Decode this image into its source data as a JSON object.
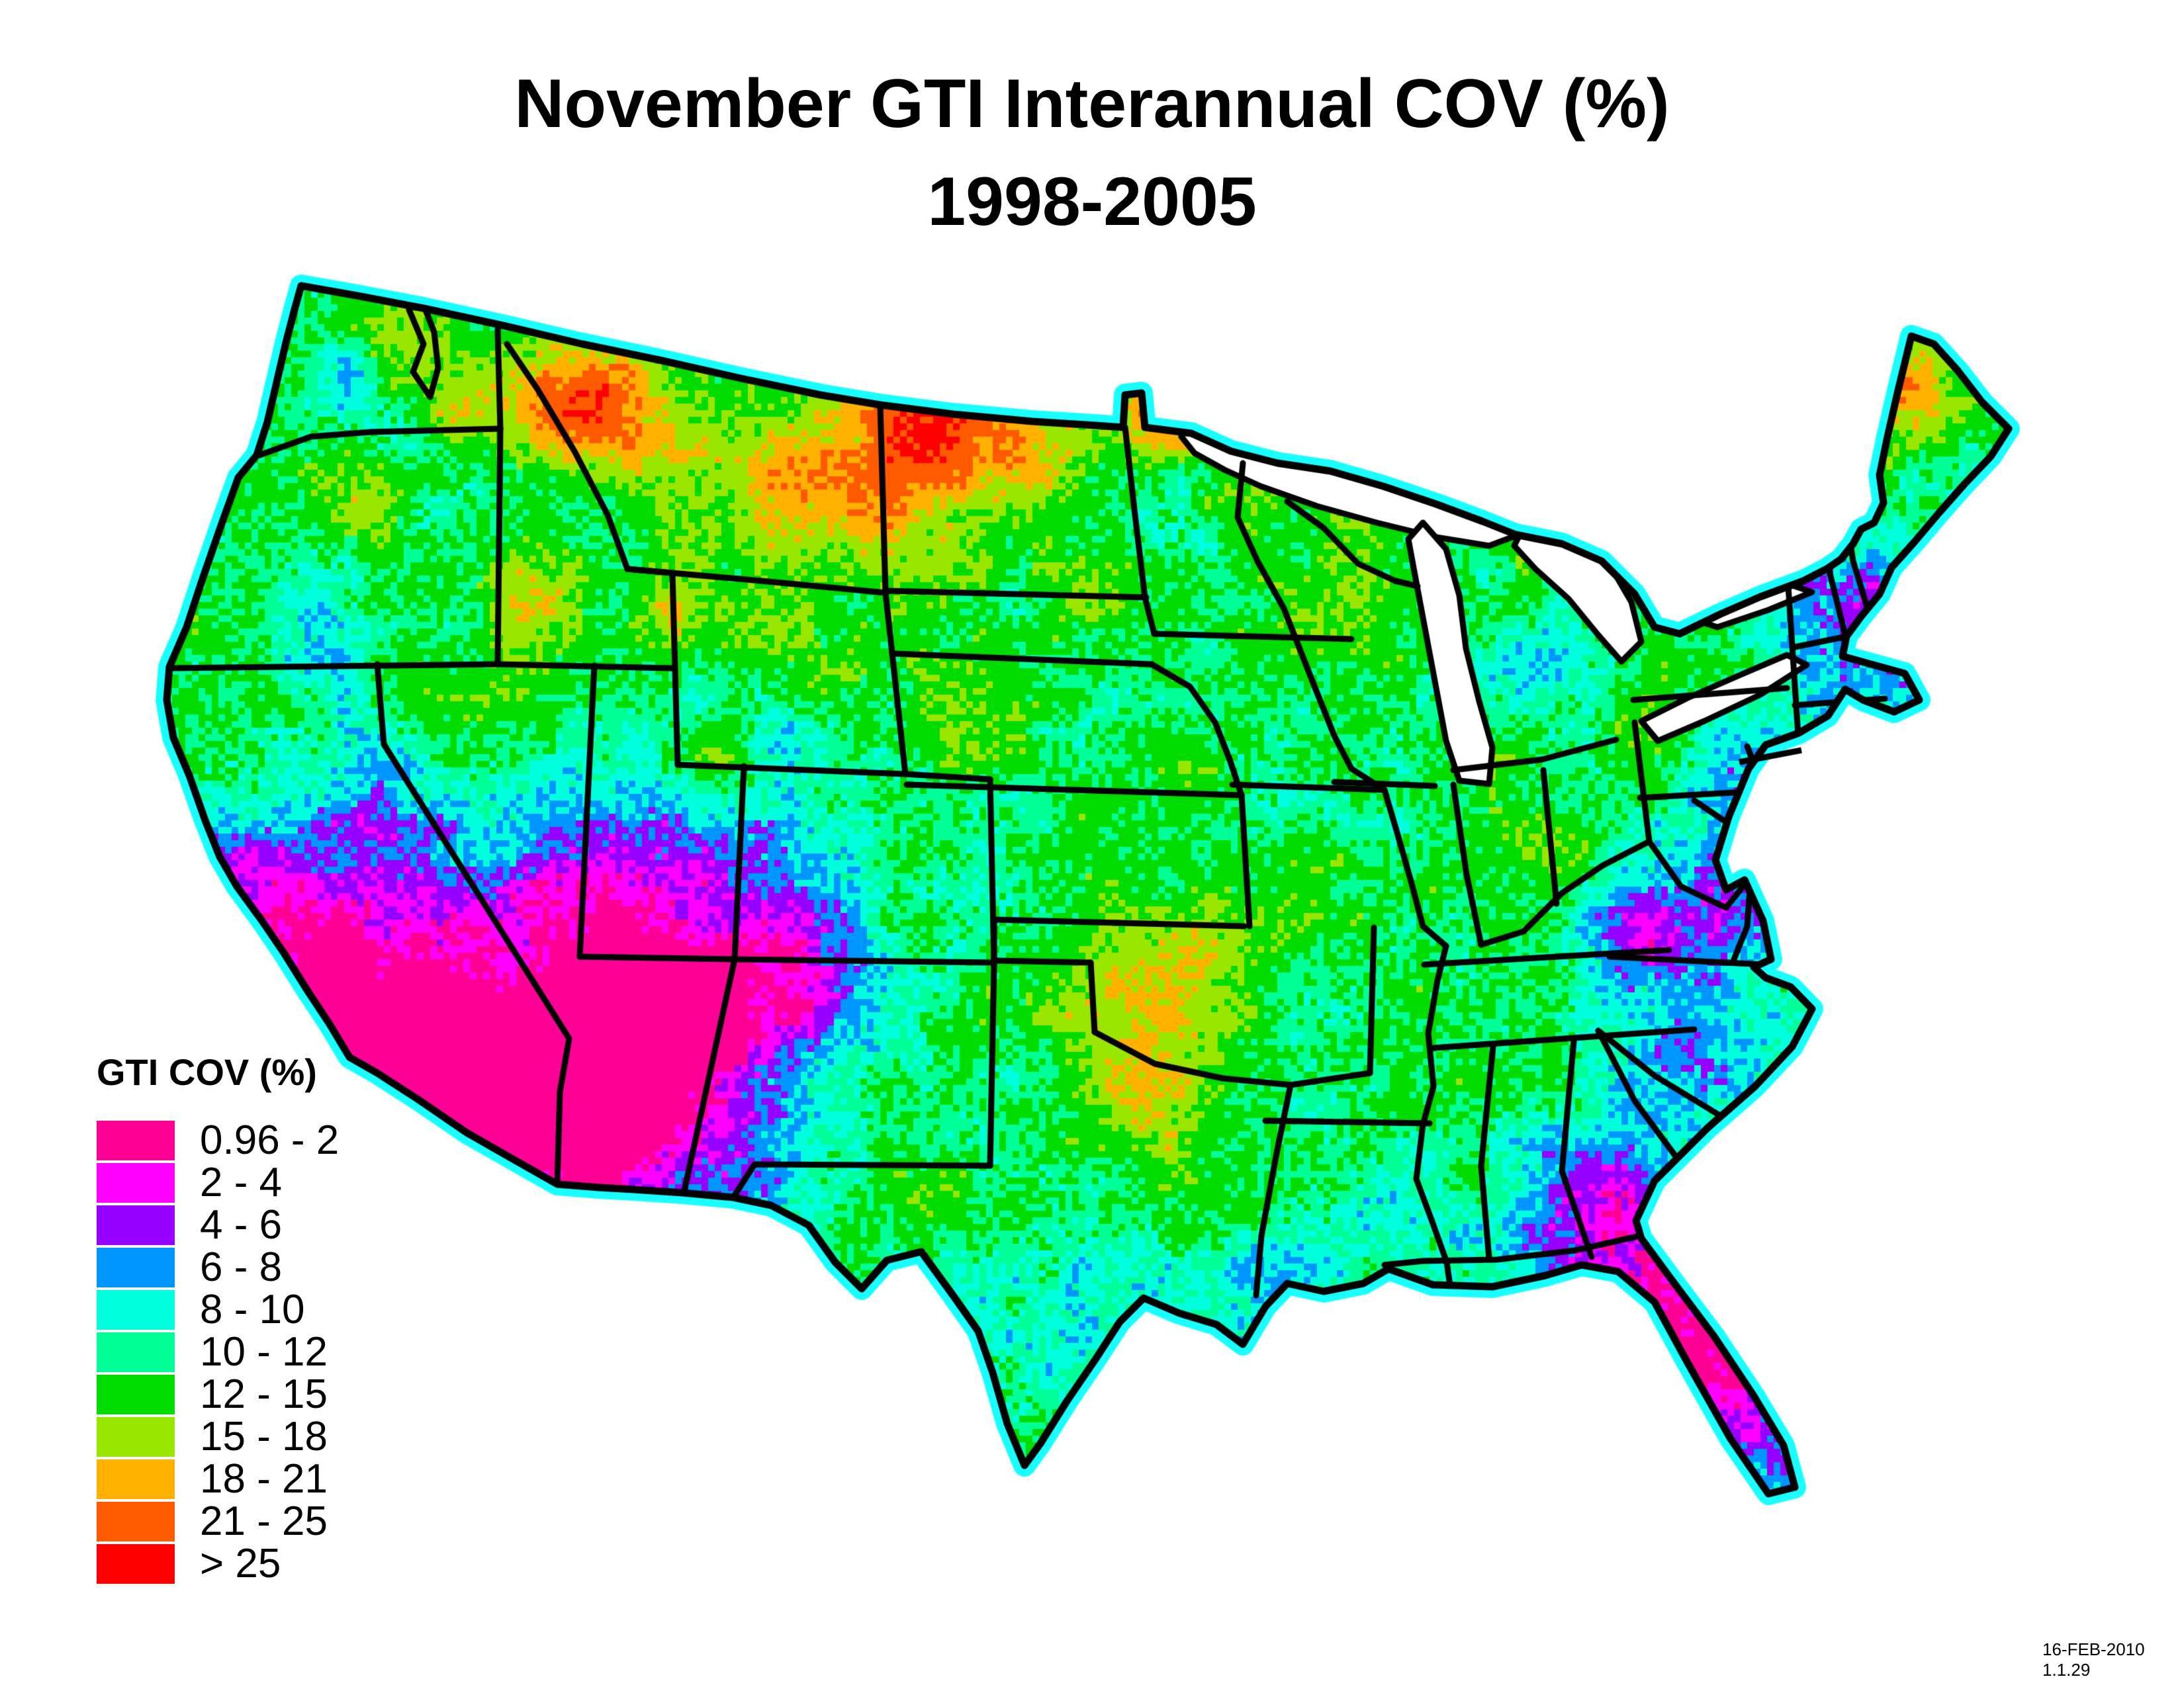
{
  "title": {
    "line1": "November GTI Interannual COV (%)",
    "line2": "1998-2005"
  },
  "legend": {
    "title": "GTI COV (%)",
    "items": [
      {
        "label": "0.96 - 2",
        "color": "#FF0096"
      },
      {
        "label": "2 - 4",
        "color": "#FF00FF"
      },
      {
        "label": "4 - 6",
        "color": "#9600FF"
      },
      {
        "label": "6 - 8",
        "color": "#0096FF"
      },
      {
        "label": "8 - 10",
        "color": "#00FFDC"
      },
      {
        "label": "10 - 12",
        "color": "#00FF96"
      },
      {
        "label": "12 - 15",
        "color": "#00DC00"
      },
      {
        "label": "15 - 18",
        "color": "#99E600"
      },
      {
        "label": "18 - 21",
        "color": "#FFB000"
      },
      {
        "label": "21 - 25",
        "color": "#FF5A00"
      },
      {
        "label": "> 25",
        "color": "#FF0000"
      }
    ],
    "bin_upper_bounds": [
      2,
      4,
      6,
      8,
      10,
      12,
      15,
      18,
      21,
      25
    ]
  },
  "map": {
    "region": "Contiguous United States",
    "background": "#FFFFFF",
    "state_border_color": "#000000",
    "lake_fill_color": "#FFFFFF",
    "coast_halo_color": "#00FFFF"
  },
  "footer": {
    "stamp": "16-FEB-2010 1.1.29"
  }
}
